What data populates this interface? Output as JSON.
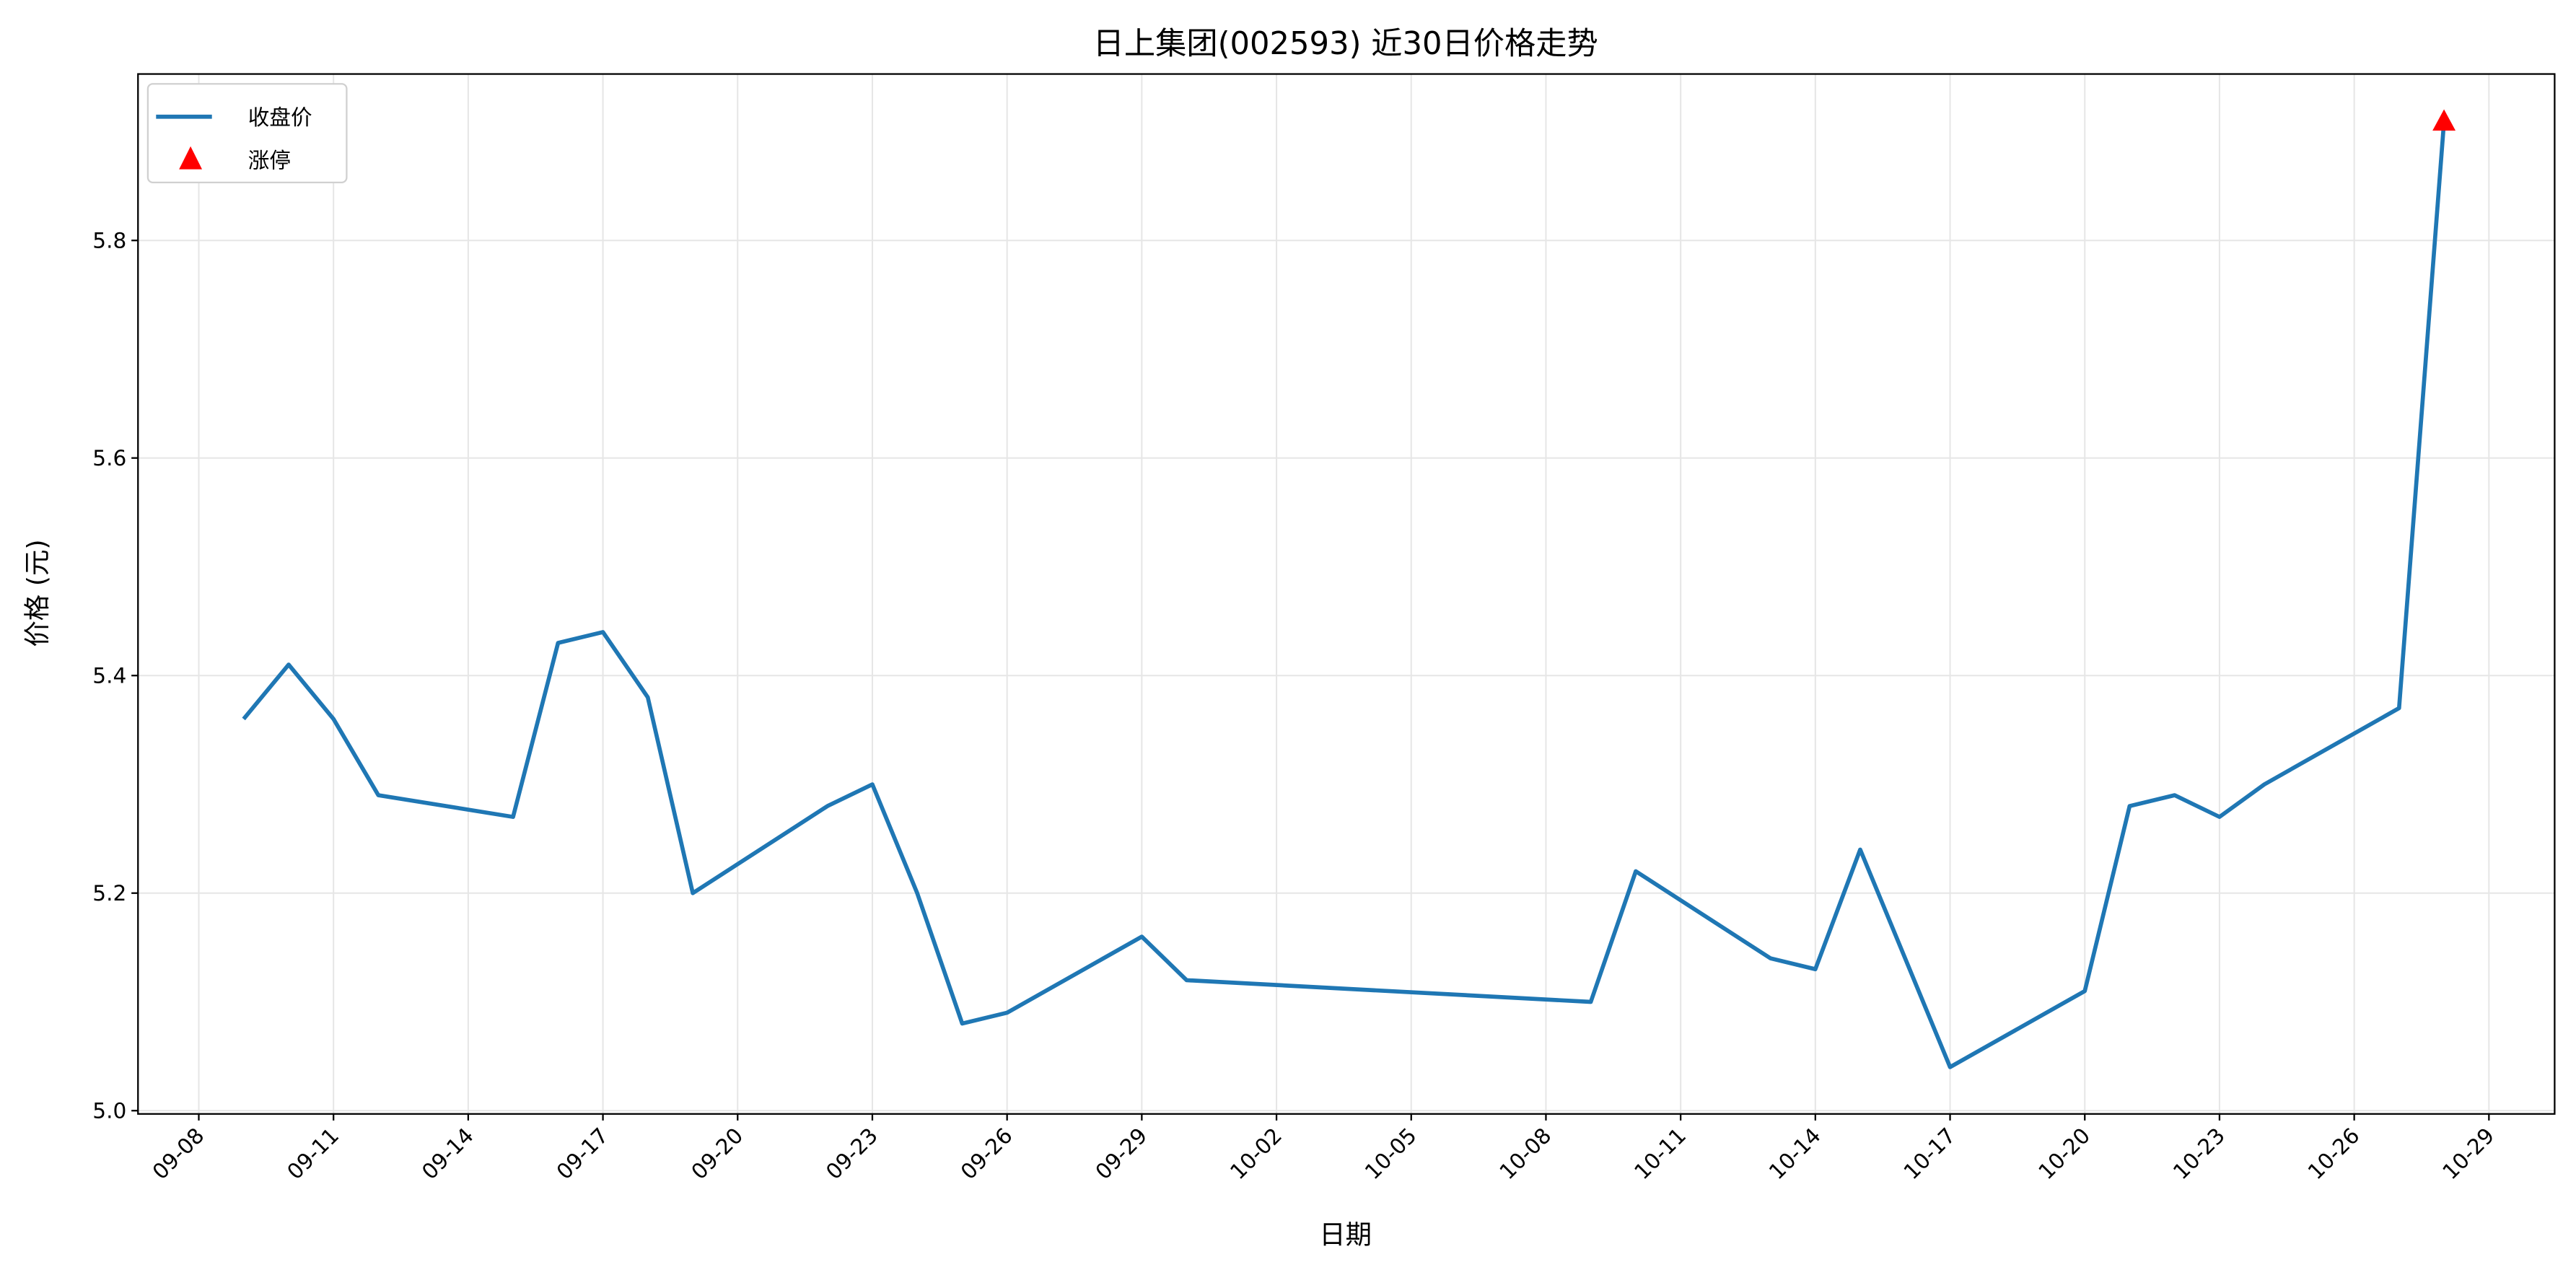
{
  "chart_data": {
    "type": "line",
    "title": "日上集团(002593) 近30日价格走势",
    "xlabel": "日期",
    "ylabel": "价格 (元)",
    "ylim": [
      4.997,
      5.953
    ],
    "grid": true,
    "legend_position": "top-left",
    "x_ticks": [
      "09-08",
      "09-11",
      "09-14",
      "09-17",
      "09-20",
      "09-23",
      "09-26",
      "09-29",
      "10-02",
      "10-05",
      "10-08",
      "10-11",
      "10-14",
      "10-17",
      "10-20",
      "10-23",
      "10-26",
      "10-29"
    ],
    "y_ticks": [
      "5.0",
      "5.2",
      "5.4",
      "5.6",
      "5.8"
    ],
    "series": [
      {
        "name": "收盘价",
        "color": "#1f77b4",
        "x": [
          "09-09",
          "09-10",
          "09-11",
          "09-12",
          "09-15",
          "09-16",
          "09-17",
          "09-18",
          "09-19",
          "09-22",
          "09-23",
          "09-24",
          "09-25",
          "09-26",
          "09-29",
          "09-30",
          "10-09",
          "10-10",
          "10-13",
          "10-14",
          "10-15",
          "10-17",
          "10-20",
          "10-21",
          "10-22",
          "10-23",
          "10-24",
          "10-27",
          "10-28"
        ],
        "y": [
          5.36,
          5.41,
          5.36,
          5.29,
          5.27,
          5.43,
          5.44,
          5.38,
          5.2,
          5.28,
          5.3,
          5.2,
          5.08,
          5.09,
          5.16,
          5.12,
          5.1,
          5.22,
          5.14,
          5.13,
          5.24,
          5.04,
          5.11,
          5.28,
          5.29,
          5.27,
          5.3,
          5.37,
          5.91
        ]
      },
      {
        "name": "涨停",
        "type": "scatter",
        "marker": "triangle",
        "color": "#ff0000",
        "x": [
          "10-28"
        ],
        "y": [
          5.91
        ]
      }
    ]
  }
}
